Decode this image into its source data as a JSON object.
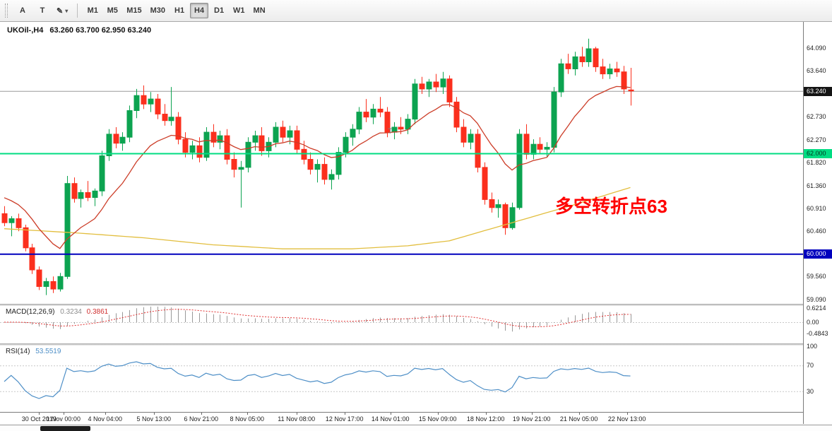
{
  "toolbar": {
    "tools": [
      {
        "label": "A"
      },
      {
        "label": "T"
      },
      {
        "label": "✎"
      }
    ],
    "caret": "▾",
    "timeframes": [
      "M1",
      "M5",
      "M15",
      "M30",
      "H1",
      "H4",
      "D1",
      "W1",
      "MN"
    ],
    "active_timeframe": "H4"
  },
  "chart": {
    "title_symbol": "UKOil-,H4",
    "title_ohlc": "63.260 63.700 62.950 63.240",
    "annotation": {
      "text": "多空转折点63",
      "color": "#FF0000"
    },
    "cursor_mark": "T",
    "y_axis_labels": [
      "64.090",
      "63.640",
      "62.730",
      "62.270",
      "61.820",
      "61.360",
      "60.910",
      "60.460",
      "59.560",
      "59.090"
    ]
  },
  "macd_panel": {
    "label": "MACD(12,26,9)",
    "main_value": "0.3234",
    "signal_value": "0.3861",
    "scale": [
      {
        "label": "0.6214",
        "value": 0.6214
      },
      {
        "label": "0.00",
        "value": 0
      },
      {
        "label": "-0.4843",
        "value": -0.4843
      }
    ]
  },
  "rsi_panel": {
    "label": "RSI(14)",
    "value": "53.5519",
    "levels": [
      70,
      30
    ],
    "scale": [
      {
        "label": "100",
        "value": 100
      },
      {
        "label": "70",
        "value": 70
      },
      {
        "label": "30",
        "value": 30
      }
    ]
  },
  "time_axis": [
    {
      "label": "30 Oct 2019",
      "i": 5
    },
    {
      "label": "1 Nov 00:00",
      "i": 8.5
    },
    {
      "label": "4 Nov 04:00",
      "i": 14.5
    },
    {
      "label": "5 Nov 13:00",
      "i": 21.5
    },
    {
      "label": "6 Nov 21:00",
      "i": 28.3
    },
    {
      "label": "8 Nov 05:00",
      "i": 34.9
    },
    {
      "label": "11 Nov 08:00",
      "i": 42
    },
    {
      "label": "12 Nov 17:00",
      "i": 48.9
    },
    {
      "label": "14 Nov 01:00",
      "i": 55.5
    },
    {
      "label": "15 Nov 09:00",
      "i": 62.3
    },
    {
      "label": "18 Nov 12:00",
      "i": 69.2
    },
    {
      "label": "19 Nov 21:00",
      "i": 75.8
    },
    {
      "label": "21 Nov 05:00",
      "i": 82.6
    },
    {
      "label": "22 Nov 13:00",
      "i": 89.5
    }
  ],
  "chart_data": {
    "type": "candlestick",
    "symbol": "UKOil-",
    "timeframe": "H4",
    "title": "UKOil-,H4 63.260 63.700 62.950 63.240",
    "ylim": [
      59.02,
      64.6
    ],
    "ohlc": [
      [
        60.8,
        60.95,
        60.55,
        60.62
      ],
      [
        60.62,
        60.75,
        60.35,
        60.7
      ],
      [
        60.7,
        60.8,
        60.45,
        60.52
      ],
      [
        60.52,
        60.58,
        60.05,
        60.12
      ],
      [
        60.12,
        60.2,
        59.6,
        59.68
      ],
      [
        59.68,
        59.75,
        59.28,
        59.35
      ],
      [
        59.35,
        59.52,
        59.18,
        59.45
      ],
      [
        59.45,
        59.55,
        59.22,
        59.3
      ],
      [
        59.3,
        59.62,
        59.25,
        59.55
      ],
      [
        59.55,
        61.55,
        59.5,
        61.4
      ],
      [
        61.4,
        61.52,
        61.02,
        61.1
      ],
      [
        61.1,
        61.28,
        60.92,
        61.22
      ],
      [
        61.22,
        61.45,
        61.05,
        61.12
      ],
      [
        61.12,
        61.3,
        60.95,
        61.25
      ],
      [
        61.25,
        62.05,
        61.15,
        61.95
      ],
      [
        61.95,
        62.48,
        61.85,
        62.38
      ],
      [
        62.38,
        62.52,
        62.1,
        62.2
      ],
      [
        62.2,
        62.42,
        62.05,
        62.32
      ],
      [
        62.32,
        62.95,
        62.22,
        62.85
      ],
      [
        62.85,
        63.28,
        62.7,
        63.15
      ],
      [
        63.15,
        63.35,
        62.88,
        62.98
      ],
      [
        62.98,
        63.22,
        62.82,
        63.08
      ],
      [
        63.08,
        63.18,
        62.68,
        62.78
      ],
      [
        62.78,
        62.98,
        62.55,
        62.65
      ],
      [
        62.65,
        63.32,
        62.55,
        62.72
      ],
      [
        62.72,
        62.82,
        62.18,
        62.28
      ],
      [
        62.28,
        62.42,
        61.92,
        62.02
      ],
      [
        62.02,
        62.25,
        61.88,
        62.15
      ],
      [
        62.15,
        62.32,
        61.82,
        61.92
      ],
      [
        61.92,
        62.52,
        61.85,
        62.42
      ],
      [
        62.42,
        62.58,
        62.12,
        62.22
      ],
      [
        62.22,
        62.45,
        62.08,
        62.35
      ],
      [
        62.35,
        62.48,
        61.78,
        61.88
      ],
      [
        61.88,
        62.02,
        61.52,
        61.68
      ],
      [
        61.68,
        61.85,
        60.92,
        61.72
      ],
      [
        61.72,
        62.32,
        61.62,
        62.22
      ],
      [
        62.22,
        62.45,
        62.05,
        62.35
      ],
      [
        62.35,
        62.52,
        61.95,
        62.05
      ],
      [
        62.05,
        62.32,
        61.92,
        62.22
      ],
      [
        62.22,
        62.62,
        62.12,
        62.52
      ],
      [
        62.52,
        62.65,
        62.22,
        62.32
      ],
      [
        62.32,
        62.55,
        62.18,
        62.45
      ],
      [
        62.45,
        62.55,
        61.98,
        62.08
      ],
      [
        62.08,
        62.25,
        61.78,
        61.88
      ],
      [
        61.88,
        62.02,
        61.58,
        61.68
      ],
      [
        61.68,
        61.88,
        61.42,
        61.78
      ],
      [
        61.78,
        61.92,
        61.38,
        61.48
      ],
      [
        61.48,
        61.68,
        61.28,
        61.58
      ],
      [
        61.58,
        62.12,
        61.48,
        62.02
      ],
      [
        62.02,
        62.42,
        61.92,
        62.32
      ],
      [
        62.32,
        62.58,
        62.15,
        62.48
      ],
      [
        62.48,
        62.92,
        62.38,
        62.82
      ],
      [
        62.82,
        63.08,
        62.62,
        62.72
      ],
      [
        62.72,
        62.98,
        62.58,
        62.88
      ],
      [
        62.88,
        63.12,
        62.72,
        62.82
      ],
      [
        62.82,
        62.92,
        62.32,
        62.42
      ],
      [
        62.42,
        62.62,
        62.28,
        62.52
      ],
      [
        62.52,
        62.72,
        62.38,
        62.48
      ],
      [
        62.48,
        62.78,
        62.38,
        62.68
      ],
      [
        62.68,
        63.48,
        62.58,
        63.38
      ],
      [
        63.38,
        63.52,
        63.18,
        63.28
      ],
      [
        63.28,
        63.48,
        63.12,
        63.42
      ],
      [
        63.42,
        63.58,
        63.22,
        63.32
      ],
      [
        63.32,
        63.62,
        63.18,
        63.48
      ],
      [
        63.48,
        63.55,
        62.92,
        63.02
      ],
      [
        63.02,
        63.12,
        62.42,
        62.52
      ],
      [
        62.52,
        62.68,
        62.12,
        62.22
      ],
      [
        62.22,
        62.48,
        62.08,
        62.38
      ],
      [
        62.38,
        62.48,
        61.62,
        61.72
      ],
      [
        61.72,
        61.82,
        60.98,
        61.08
      ],
      [
        61.08,
        61.22,
        60.82,
        60.92
      ],
      [
        60.92,
        61.08,
        60.72,
        60.98
      ],
      [
        60.98,
        61.02,
        60.38,
        60.52
      ],
      [
        60.52,
        61.02,
        60.48,
        60.92
      ],
      [
        60.92,
        62.48,
        60.88,
        62.38
      ],
      [
        62.38,
        62.58,
        61.88,
        61.98
      ],
      [
        61.98,
        62.28,
        61.88,
        62.18
      ],
      [
        62.18,
        62.32,
        61.98,
        62.08
      ],
      [
        62.08,
        62.22,
        61.92,
        62.12
      ],
      [
        62.12,
        63.32,
        62.02,
        63.22
      ],
      [
        63.22,
        63.88,
        63.12,
        63.78
      ],
      [
        63.78,
        63.98,
        63.58,
        63.68
      ],
      [
        63.68,
        64.02,
        63.55,
        63.92
      ],
      [
        63.92,
        64.12,
        63.72,
        63.82
      ],
      [
        63.82,
        64.28,
        63.72,
        64.08
      ],
      [
        64.08,
        64.12,
        63.62,
        63.72
      ],
      [
        63.72,
        63.88,
        63.48,
        63.58
      ],
      [
        63.58,
        63.78,
        63.48,
        63.68
      ],
      [
        63.68,
        63.82,
        63.52,
        63.62
      ],
      [
        63.62,
        63.74,
        63.18,
        63.28
      ],
      [
        63.26,
        63.7,
        62.95,
        63.24
      ]
    ],
    "hlines": [
      {
        "label": "63.240",
        "value": 63.24,
        "color": "#9a9a9a",
        "width": 1,
        "badge_bg": "#141414",
        "badge_fg": "#ffffff"
      },
      {
        "label": "62.000",
        "value": 62.0,
        "color": "#00DC82",
        "width": 2,
        "badge_bg": "#00DC82",
        "badge_fg": "#00331d"
      },
      {
        "label": "60.000",
        "value": 60.0,
        "color": "#0000BE",
        "width": 2,
        "badge_bg": "#0000BE",
        "badge_fg": "#ffffff"
      }
    ],
    "indicators": {
      "ma_fast": {
        "type": "ema",
        "period": 13
      },
      "ma_slow_points": [
        [
          0,
          60.5
        ],
        [
          10,
          60.42
        ],
        [
          20,
          60.32
        ],
        [
          30,
          60.18
        ],
        [
          40,
          60.1
        ],
        [
          50,
          60.1
        ],
        [
          58,
          60.16
        ],
        [
          64,
          60.26
        ],
        [
          70,
          60.5
        ],
        [
          76,
          60.74
        ],
        [
          82,
          60.98
        ],
        [
          90,
          61.32
        ]
      ],
      "macd": {
        "fast": 12,
        "slow": 26,
        "signal": 9
      },
      "rsi": {
        "period": 14
      }
    }
  },
  "colors": {
    "bull": "#0CA350",
    "bear": "#FB2F1D",
    "ma_fast": "#CC3D28",
    "ma_slow": "#E2BE3E",
    "macd_hist": "#999999",
    "macd_signal": "#E03131",
    "rsi_line": "#4E8FC7"
  }
}
